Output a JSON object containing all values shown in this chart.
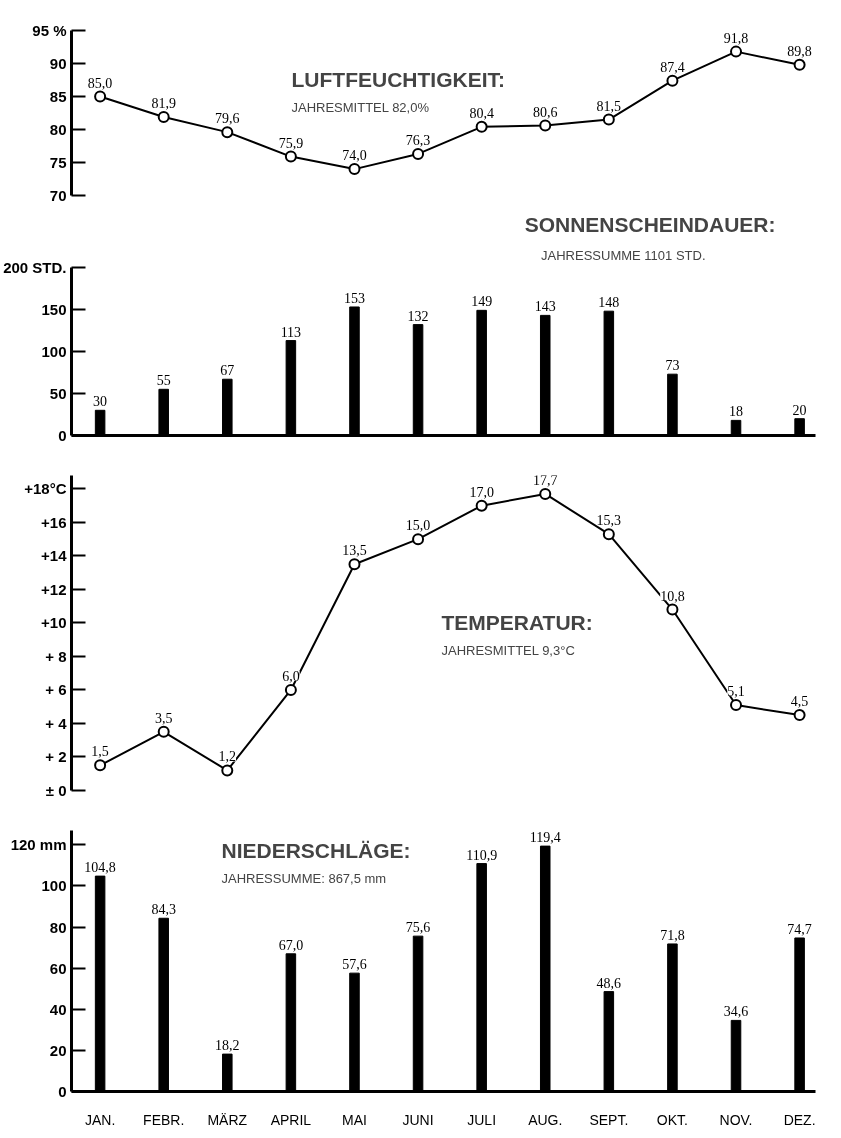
{
  "chart_data": [
    {
      "type": "line",
      "title": "LUFTFEUCHTIGKEIT:",
      "subtitle": "JAHRESMITTEL 82,0%",
      "categories": [
        null,
        null,
        null,
        null,
        null,
        null,
        null,
        null,
        null,
        null,
        null,
        null
      ],
      "values": [
        85.0,
        81.9,
        79.6,
        75.9,
        74.0,
        76.3,
        80.4,
        80.6,
        81.5,
        87.4,
        91.8,
        89.8
      ],
      "value_labels": [
        "85,0",
        "81,9",
        "79,6",
        "75,9",
        "74,0",
        "76,3",
        "80,4",
        "80,6",
        "81,5",
        "87,4",
        "91,8",
        "89,8"
      ],
      "color": "#000000",
      "marker": "circle",
      "line_style": "solid",
      "ylim": [
        70,
        95
      ],
      "yticks": [
        70,
        75,
        80,
        85,
        90,
        {
          "value": 95,
          "label": "95 %"
        }
      ],
      "grid": false,
      "tick_labels": "y"
    },
    {
      "type": "bar",
      "title": "SONNENSCHEINDAUER:",
      "subtitle": "JAHRESSUMME 1101 STD.",
      "categories": [
        null,
        null,
        null,
        null,
        null,
        null,
        null,
        null,
        null,
        null,
        null,
        null
      ],
      "values": [
        30,
        55,
        67,
        113,
        153,
        132,
        149,
        143,
        148,
        73,
        18,
        20
      ],
      "data_labels": true,
      "color": "#000000",
      "ylim": [
        0,
        200
      ],
      "yticks": [
        0,
        50,
        100,
        150,
        {
          "value": 200,
          "label": "200 STD."
        }
      ],
      "grid": false,
      "tick_labels": "y"
    },
    {
      "type": "line",
      "title": "TEMPERATUR:",
      "subtitle": "JAHRESMITTEL 9,3°C",
      "categories": [
        null,
        null,
        null,
        null,
        null,
        null,
        null,
        null,
        null,
        null,
        null,
        null
      ],
      "values": [
        1.5,
        3.5,
        1.2,
        6.0,
        13.5,
        15.0,
        17.0,
        17.7,
        15.3,
        10.8,
        5.1,
        4.5
      ],
      "value_labels": [
        "1,5",
        "3,5",
        "1,2",
        "6,0",
        "13,5",
        "15,0",
        "17,0",
        "17,7",
        "15,3",
        "10,8",
        "5,1",
        "4,5"
      ],
      "color": "#000000",
      "marker": "circle",
      "line_style": "solid",
      "ylim": [
        0,
        18.8
      ],
      "yticks": [
        {
          "value": 0,
          "label": "± 0"
        },
        {
          "value": 2,
          "label": "+ 2"
        },
        {
          "value": 4,
          "label": "+ 4"
        },
        {
          "value": 6,
          "label": "+ 6"
        },
        {
          "value": 8,
          "label": "+ 8"
        },
        {
          "value": 10,
          "label": "+10"
        },
        {
          "value": 12,
          "label": "+12"
        },
        {
          "value": 14,
          "label": "+14"
        },
        {
          "value": 16,
          "label": "+16"
        },
        {
          "value": 18,
          "label": "+18°C"
        }
      ],
      "grid": false,
      "tick_labels": "y"
    },
    {
      "type": "bar",
      "title": "NIEDERSCHLÄGE:",
      "subtitle": "JAHRESSUMME: 867,5 mm",
      "categories": [
        "JAN.",
        "FEBR.",
        "MÄRZ",
        "APRIL",
        "MAI",
        "JUNI",
        "JULI",
        "AUG.",
        "SEPT.",
        "OKT.",
        "NOV.",
        "DEZ."
      ],
      "values": [
        104.8,
        84.3,
        18.2,
        67.0,
        57.6,
        75.6,
        110.9,
        119.4,
        48.6,
        71.8,
        34.6,
        74.7
      ],
      "value_labels": [
        "104,8",
        "84,3",
        "18,2",
        "67,0",
        "57,6",
        "75,6",
        "110,9",
        "119,4",
        "48,6",
        "71,8",
        "34,6",
        "74,7"
      ],
      "color": "#000000",
      "ylim": [
        0,
        127
      ],
      "yticks": [
        0,
        20,
        40,
        60,
        80,
        100,
        {
          "value": 120,
          "label": "120 mm"
        }
      ],
      "grid": false
    }
  ]
}
